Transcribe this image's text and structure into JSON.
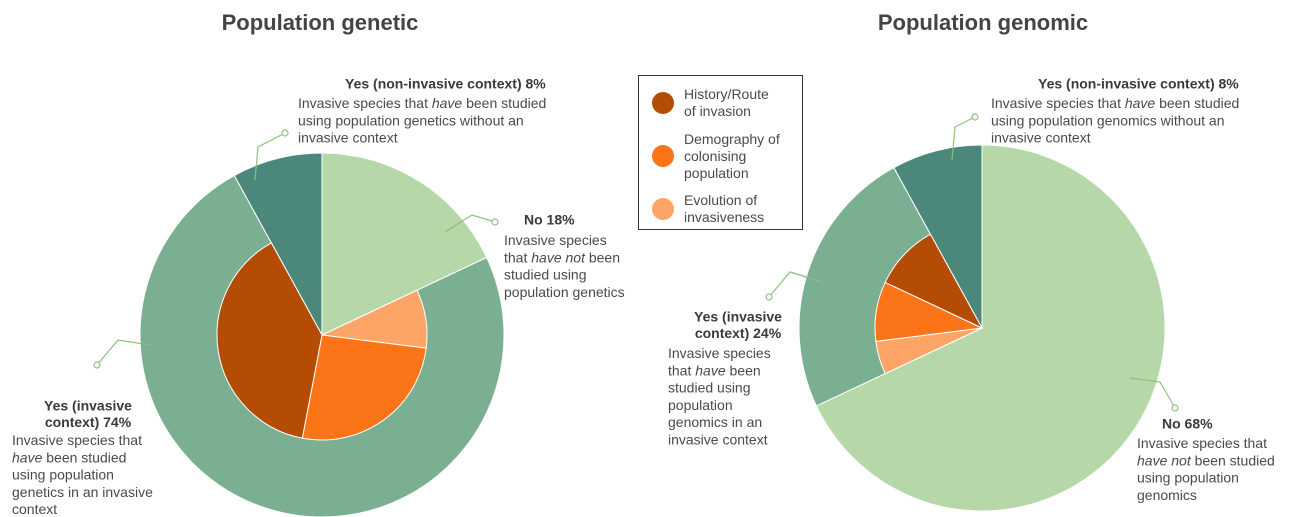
{
  "legend": {
    "series": [
      {
        "name": "History/Route of invasion",
        "color": "#b44c04"
      },
      {
        "name": "Demography of colonising population",
        "color": "#fb7418"
      },
      {
        "name": "Evolution of invasiveness",
        "color": "#fda566"
      }
    ]
  },
  "chart_data": [
    {
      "type": "pie",
      "title": "Population genetic",
      "values": [
        18,
        74,
        8
      ],
      "colors": [
        "#b6d7a8",
        "#7baf91",
        "#4b877a"
      ],
      "inner_values": [
        39,
        26,
        9
      ],
      "annotations": [
        {
          "heading": [
            "No 18%"
          ],
          "description": [
            [
              "Invasive species"
            ],
            [
              "that ",
              {
                "text": "have not",
                "italic": true
              },
              " been"
            ],
            [
              "studied using"
            ],
            [
              "population genetics"
            ]
          ]
        },
        {
          "heading": [
            "Yes (invasive",
            "context) 74%"
          ],
          "description": [
            [
              "Invasive species that"
            ],
            [
              {
                "text": "have",
                "italic": true
              },
              " been studied"
            ],
            [
              "using population"
            ],
            [
              "genetics in an invasive"
            ],
            [
              "context"
            ]
          ]
        },
        {
          "heading": [
            "Yes (non-invasive context) 8%"
          ],
          "description": [
            [
              "Invasive species that ",
              {
                "text": "have",
                "italic": true
              },
              " been studied"
            ],
            [
              "using population genetics without an"
            ],
            [
              "invasive context"
            ]
          ]
        }
      ]
    },
    {
      "type": "pie",
      "title": "Population genomic",
      "values": [
        68,
        24,
        8
      ],
      "colors": [
        "#b6d7a8",
        "#7baf91",
        "#4b877a"
      ],
      "inner_values": [
        10,
        9,
        5
      ],
      "annotations": [
        {
          "heading": [
            "No 68%"
          ],
          "description": [
            [
              "Invasive species that"
            ],
            [
              {
                "text": "have not",
                "italic": true
              },
              " been studied"
            ],
            [
              "using population"
            ],
            [
              "genomics"
            ]
          ]
        },
        {
          "heading": [
            "Yes (invasive",
            "context) 24%"
          ],
          "description": [
            [
              "Invasive species"
            ],
            [
              "that ",
              {
                "text": "have",
                "italic": true
              },
              " been"
            ],
            [
              "studied using"
            ],
            [
              "population"
            ],
            [
              "genomics in an"
            ],
            [
              "invasive context"
            ]
          ]
        },
        {
          "heading": [
            "Yes (non-invasive context) 8%"
          ],
          "description": [
            [
              "Invasive species that ",
              {
                "text": "have",
                "italic": true
              },
              " been studied"
            ],
            [
              "using population genomics without an"
            ],
            [
              "invasive context"
            ]
          ]
        }
      ]
    }
  ]
}
